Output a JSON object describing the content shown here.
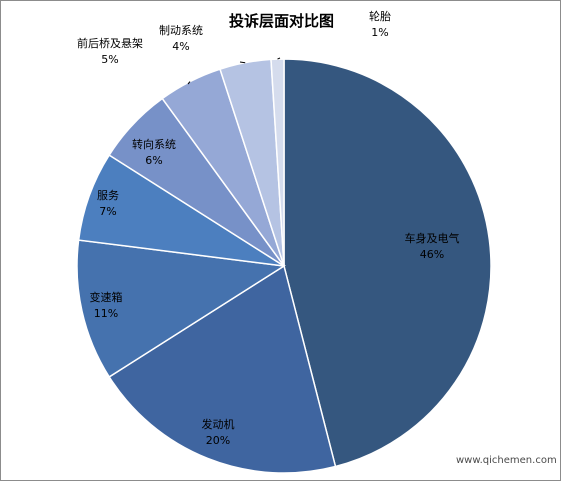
{
  "chart_data": {
    "type": "pie",
    "title": "投诉层面对比图",
    "slices": [
      {
        "label": "车身及电气",
        "value": 46,
        "value_label": "46%",
        "color": "#35577f"
      },
      {
        "label": "发动机",
        "value": 20,
        "value_label": "20%",
        "color": "#3f65a0"
      },
      {
        "label": "变速箱",
        "value": 11,
        "value_label": "11%",
        "color": "#4572ae"
      },
      {
        "label": "服务",
        "value": 7,
        "value_label": "7%",
        "color": "#4c7fbf"
      },
      {
        "label": "转向系统",
        "value": 6,
        "value_label": "6%",
        "color": "#7791c8"
      },
      {
        "label": "前后桥及悬架",
        "value": 5,
        "value_label": "5%",
        "color": "#95a8d6"
      },
      {
        "label": "制动系统",
        "value": 4,
        "value_label": "4%",
        "color": "#b5c3e3"
      },
      {
        "label": "轮胎",
        "value": 1,
        "value_label": "1%",
        "color": "#d5dced"
      }
    ],
    "legend": "none"
  },
  "watermark": "www.qichemen.com"
}
